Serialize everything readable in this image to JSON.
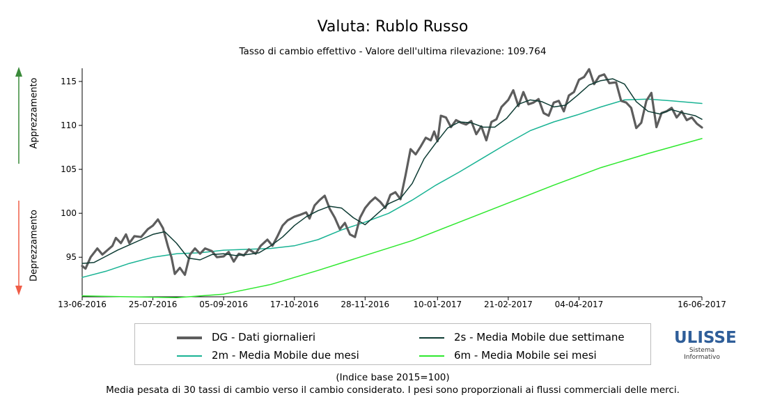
{
  "colors": {
    "dg": "#5d5d5d",
    "ma2s": "#0d3b33",
    "ma2m": "#19b394",
    "ma6m": "#2ee82e",
    "up_arrow": "#3a8a3a",
    "down_arrow": "#ef5d47"
  },
  "side_labels": {
    "up": "Apprezzamento",
    "down": "Deprezzamento"
  },
  "legend": [
    {
      "label": "DG - Dati giornalieri",
      "color": "#5d5d5d"
    },
    {
      "label": "2s - Media Mobile due settimane",
      "color": "#0d3b33"
    },
    {
      "label": "2m - Media Mobile due mesi",
      "color": "#19b394"
    },
    {
      "label": "6m - Media Mobile sei mesi",
      "color": "#2ee82e"
    }
  ],
  "notes": {
    "base": "(Indice base 2015=100)",
    "description": "Media pesata di 30 tassi di cambio verso il cambio considerato. I pesi sono proporzionali ai flussi commerciali delle merci."
  },
  "logo": {
    "name": "ULISSE",
    "line1": "Sistema",
    "line2": "Informativo"
  },
  "chart_data": {
    "type": "line",
    "title": "Valuta: Rublo Russo",
    "subtitle": "Tasso di cambio effettivo - Valore dell'ultima rilevazione: 109.764",
    "xlabel": "",
    "ylabel": "",
    "ylim": [
      90.5,
      116.5
    ],
    "yticks": [
      95,
      100,
      105,
      110,
      115
    ],
    "x_range": [
      "13-06-2016",
      "16-06-2017"
    ],
    "xticks": [
      "13-06-2016",
      "25-07-2016",
      "05-09-2016",
      "17-10-2016",
      "28-11-2016",
      "10-01-2017",
      "21-02-2017",
      "04-04-2017",
      "16-06-2017"
    ],
    "grid": false,
    "legend_position": "bottom",
    "series": [
      {
        "name": "DG - Dati giornalieri",
        "points": [
          [
            "13-06-2016",
            94.0
          ],
          [
            "15-06-2016",
            93.7
          ],
          [
            "18-06-2016",
            95.0
          ],
          [
            "22-06-2016",
            96.0
          ],
          [
            "25-06-2016",
            95.3
          ],
          [
            "28-06-2016",
            95.8
          ],
          [
            "01-07-2016",
            96.3
          ],
          [
            "03-07-2016",
            97.2
          ],
          [
            "06-07-2016",
            96.6
          ],
          [
            "09-07-2016",
            97.6
          ],
          [
            "11-07-2016",
            96.6
          ],
          [
            "14-07-2016",
            97.4
          ],
          [
            "18-07-2016",
            97.3
          ],
          [
            "22-07-2016",
            98.2
          ],
          [
            "25-07-2016",
            98.6
          ],
          [
            "28-07-2016",
            99.3
          ],
          [
            "31-07-2016",
            98.3
          ],
          [
            "03-08-2016",
            96.2
          ],
          [
            "05-08-2016",
            95.0
          ],
          [
            "07-08-2016",
            93.1
          ],
          [
            "10-08-2016",
            93.8
          ],
          [
            "13-08-2016",
            93.0
          ],
          [
            "16-08-2016",
            95.3
          ],
          [
            "19-08-2016",
            96.0
          ],
          [
            "22-08-2016",
            95.4
          ],
          [
            "25-08-2016",
            96.0
          ],
          [
            "29-08-2016",
            95.7
          ],
          [
            "01-09-2016",
            95.0
          ],
          [
            "05-09-2016",
            95.1
          ],
          [
            "08-09-2016",
            95.6
          ],
          [
            "11-09-2016",
            94.5
          ],
          [
            "14-09-2016",
            95.4
          ],
          [
            "17-09-2016",
            95.2
          ],
          [
            "20-09-2016",
            95.9
          ],
          [
            "24-09-2016",
            95.4
          ],
          [
            "27-09-2016",
            96.3
          ],
          [
            "01-10-2016",
            97.0
          ],
          [
            "04-10-2016",
            96.3
          ],
          [
            "07-10-2016",
            97.4
          ],
          [
            "10-10-2016",
            98.6
          ],
          [
            "13-10-2016",
            99.2
          ],
          [
            "17-10-2016",
            99.6
          ],
          [
            "20-10-2016",
            99.8
          ],
          [
            "24-10-2016",
            100.1
          ],
          [
            "26-10-2016",
            99.4
          ],
          [
            "29-10-2016",
            100.9
          ],
          [
            "01-11-2016",
            101.5
          ],
          [
            "04-11-2016",
            102.0
          ],
          [
            "07-11-2016",
            100.5
          ],
          [
            "10-11-2016",
            99.5
          ],
          [
            "13-11-2016",
            98.2
          ],
          [
            "16-11-2016",
            98.9
          ],
          [
            "19-11-2016",
            97.6
          ],
          [
            "22-11-2016",
            97.3
          ],
          [
            "25-11-2016",
            99.5
          ],
          [
            "28-11-2016",
            100.6
          ],
          [
            "01-12-2016",
            101.3
          ],
          [
            "04-12-2016",
            101.8
          ],
          [
            "07-12-2016",
            101.3
          ],
          [
            "10-12-2016",
            100.6
          ],
          [
            "13-12-2016",
            102.1
          ],
          [
            "16-12-2016",
            102.4
          ],
          [
            "19-12-2016",
            101.6
          ],
          [
            "22-12-2016",
            104.3
          ],
          [
            "25-12-2016",
            107.3
          ],
          [
            "28-12-2016",
            106.7
          ],
          [
            "31-12-2016",
            107.6
          ],
          [
            "03-01-2017",
            108.6
          ],
          [
            "06-01-2017",
            108.3
          ],
          [
            "08-01-2017",
            109.3
          ],
          [
            "10-01-2017",
            108.2
          ],
          [
            "12-01-2017",
            111.1
          ],
          [
            "15-01-2017",
            110.9
          ],
          [
            "18-01-2017",
            109.8
          ],
          [
            "21-01-2017",
            110.6
          ],
          [
            "24-01-2017",
            110.3
          ],
          [
            "27-01-2017",
            110.1
          ],
          [
            "30-01-2017",
            110.5
          ],
          [
            "02-02-2017",
            109.0
          ],
          [
            "05-02-2017",
            109.9
          ],
          [
            "08-02-2017",
            108.3
          ],
          [
            "11-02-2017",
            110.4
          ],
          [
            "14-02-2017",
            110.7
          ],
          [
            "17-02-2017",
            112.1
          ],
          [
            "21-02-2017",
            112.9
          ],
          [
            "24-02-2017",
            114.0
          ],
          [
            "27-02-2017",
            112.2
          ],
          [
            "02-03-2017",
            113.8
          ],
          [
            "05-03-2017",
            112.4
          ],
          [
            "08-03-2017",
            112.6
          ],
          [
            "11-03-2017",
            113.0
          ],
          [
            "14-03-2017",
            111.4
          ],
          [
            "17-03-2017",
            111.1
          ],
          [
            "20-03-2017",
            112.6
          ],
          [
            "23-03-2017",
            112.8
          ],
          [
            "26-03-2017",
            111.6
          ],
          [
            "29-03-2017",
            113.4
          ],
          [
            "01-04-2017",
            113.8
          ],
          [
            "04-04-2017",
            115.2
          ],
          [
            "07-04-2017",
            115.5
          ],
          [
            "10-04-2017",
            116.4
          ],
          [
            "13-04-2017",
            114.7
          ],
          [
            "16-04-2017",
            115.6
          ],
          [
            "19-04-2017",
            115.8
          ],
          [
            "22-04-2017",
            114.8
          ],
          [
            "26-04-2017",
            114.9
          ],
          [
            "29-04-2017",
            112.8
          ],
          [
            "02-05-2017",
            112.6
          ],
          [
            "05-05-2017",
            112.0
          ],
          [
            "08-05-2017",
            109.7
          ],
          [
            "11-05-2017",
            110.3
          ],
          [
            "14-05-2017",
            112.8
          ],
          [
            "17-05-2017",
            113.7
          ],
          [
            "20-05-2017",
            109.8
          ],
          [
            "23-05-2017",
            111.4
          ],
          [
            "26-05-2017",
            111.6
          ],
          [
            "29-05-2017",
            112.0
          ],
          [
            "01-06-2017",
            110.9
          ],
          [
            "04-06-2017",
            111.6
          ],
          [
            "07-06-2017",
            110.6
          ],
          [
            "10-06-2017",
            110.9
          ],
          [
            "13-06-2017",
            110.2
          ],
          [
            "16-06-2017",
            109.76
          ]
        ]
      },
      {
        "name": "2s - Media Mobile due settimane",
        "points": [
          [
            "13-06-2016",
            94.3
          ],
          [
            "20-06-2016",
            94.4
          ],
          [
            "27-06-2016",
            95.1
          ],
          [
            "04-07-2016",
            95.8
          ],
          [
            "11-07-2016",
            96.4
          ],
          [
            "18-07-2016",
            97.0
          ],
          [
            "25-07-2016",
            97.6
          ],
          [
            "01-08-2016",
            97.9
          ],
          [
            "08-08-2016",
            96.6
          ],
          [
            "15-08-2016",
            94.9
          ],
          [
            "22-08-2016",
            94.7
          ],
          [
            "29-08-2016",
            95.3
          ],
          [
            "05-09-2016",
            95.4
          ],
          [
            "12-09-2016",
            95.2
          ],
          [
            "19-09-2016",
            95.3
          ],
          [
            "26-09-2016",
            95.5
          ],
          [
            "03-10-2016",
            96.3
          ],
          [
            "10-10-2016",
            97.3
          ],
          [
            "17-10-2016",
            98.6
          ],
          [
            "24-10-2016",
            99.6
          ],
          [
            "31-10-2016",
            100.3
          ],
          [
            "07-11-2016",
            100.8
          ],
          [
            "14-11-2016",
            100.6
          ],
          [
            "21-11-2016",
            99.5
          ],
          [
            "28-11-2016",
            98.7
          ],
          [
            "05-12-2016",
            99.9
          ],
          [
            "12-12-2016",
            101.1
          ],
          [
            "19-12-2016",
            101.7
          ],
          [
            "26-12-2016",
            103.4
          ],
          [
            "02-01-2017",
            106.2
          ],
          [
            "09-01-2017",
            108.0
          ],
          [
            "16-01-2017",
            109.7
          ],
          [
            "23-01-2017",
            110.4
          ],
          [
            "30-01-2017",
            110.3
          ],
          [
            "06-02-2017",
            109.8
          ],
          [
            "13-02-2017",
            109.8
          ],
          [
            "20-02-2017",
            110.8
          ],
          [
            "27-02-2017",
            112.4
          ],
          [
            "06-03-2017",
            112.9
          ],
          [
            "13-03-2017",
            112.7
          ],
          [
            "20-03-2017",
            112.1
          ],
          [
            "27-03-2017",
            112.3
          ],
          [
            "03-04-2017",
            113.4
          ],
          [
            "10-04-2017",
            114.6
          ],
          [
            "17-04-2017",
            115.1
          ],
          [
            "24-04-2017",
            115.3
          ],
          [
            "01-05-2017",
            114.7
          ],
          [
            "08-05-2017",
            112.7
          ],
          [
            "15-05-2017",
            111.6
          ],
          [
            "22-05-2017",
            111.3
          ],
          [
            "29-05-2017",
            111.8
          ],
          [
            "05-06-2017",
            111.4
          ],
          [
            "12-06-2017",
            111.1
          ],
          [
            "16-06-2017",
            110.7
          ]
        ]
      },
      {
        "name": "2m - Media Mobile due mesi",
        "points": [
          [
            "13-06-2016",
            92.7
          ],
          [
            "27-06-2016",
            93.4
          ],
          [
            "11-07-2016",
            94.3
          ],
          [
            "25-07-2016",
            95.0
          ],
          [
            "08-08-2016",
            95.4
          ],
          [
            "22-08-2016",
            95.5
          ],
          [
            "05-09-2016",
            95.8
          ],
          [
            "19-09-2016",
            95.9
          ],
          [
            "03-10-2016",
            96.0
          ],
          [
            "17-10-2016",
            96.3
          ],
          [
            "31-10-2016",
            97.0
          ],
          [
            "14-11-2016",
            98.1
          ],
          [
            "28-11-2016",
            99.0
          ],
          [
            "12-12-2016",
            100.0
          ],
          [
            "26-12-2016",
            101.5
          ],
          [
            "09-01-2017",
            103.2
          ],
          [
            "23-01-2017",
            104.7
          ],
          [
            "06-02-2017",
            106.3
          ],
          [
            "20-02-2017",
            107.9
          ],
          [
            "06-03-2017",
            109.4
          ],
          [
            "20-03-2017",
            110.4
          ],
          [
            "03-04-2017",
            111.2
          ],
          [
            "17-04-2017",
            112.1
          ],
          [
            "01-05-2017",
            112.9
          ],
          [
            "15-05-2017",
            113.0
          ],
          [
            "29-05-2017",
            112.8
          ],
          [
            "16-06-2017",
            112.5
          ]
        ]
      },
      {
        "name": "6m - Media Mobile sei mesi",
        "points": [
          [
            "13-06-2016",
            90.6
          ],
          [
            "11-07-2016",
            90.5
          ],
          [
            "08-08-2016",
            90.4
          ],
          [
            "05-09-2016",
            90.8
          ],
          [
            "03-10-2016",
            91.9
          ],
          [
            "31-10-2016",
            93.5
          ],
          [
            "28-11-2016",
            95.2
          ],
          [
            "26-12-2016",
            96.9
          ],
          [
            "23-01-2017",
            99.0
          ],
          [
            "20-02-2017",
            101.1
          ],
          [
            "20-03-2017",
            103.2
          ],
          [
            "17-04-2017",
            105.2
          ],
          [
            "15-05-2017",
            106.8
          ],
          [
            "16-06-2017",
            108.5
          ]
        ]
      }
    ]
  }
}
